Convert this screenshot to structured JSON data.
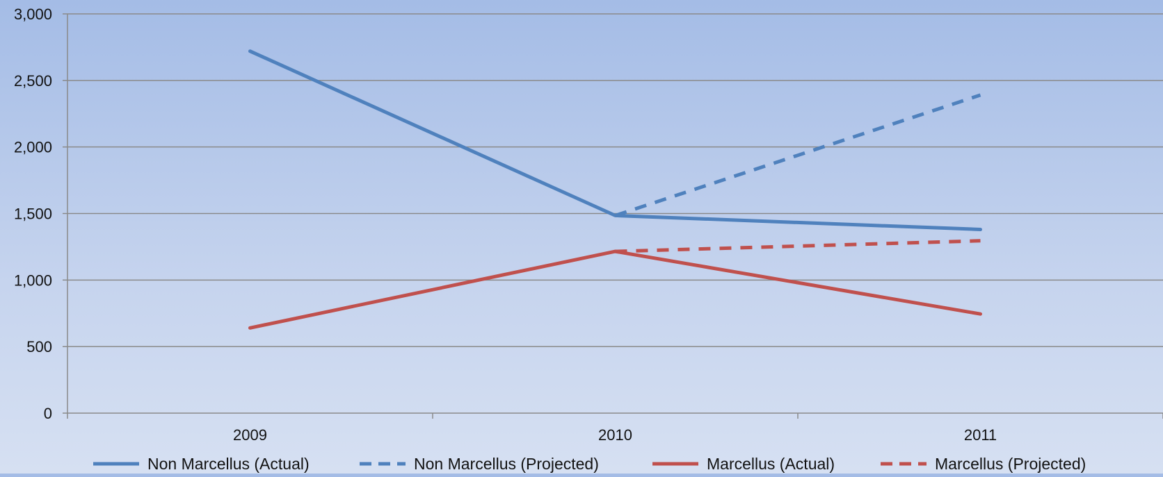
{
  "chart_data": {
    "type": "line",
    "title": "",
    "xlabel": "",
    "ylabel": "",
    "categories": [
      "2009",
      "2010",
      "2011"
    ],
    "ylim": [
      0,
      3000
    ],
    "yticks": [
      0,
      500,
      1000,
      1500,
      2000,
      2500,
      3000
    ],
    "ytick_labels": [
      "0",
      "500",
      "1,000",
      "1,500",
      "2,000",
      "2,500",
      "3,000"
    ],
    "grid": "horizontal",
    "legend_position": "bottom",
    "series": [
      {
        "name": "Non Marcellus (Actual)",
        "values": [
          2720,
          1485,
          1380
        ],
        "color": "#4f81bd",
        "dash": "solid"
      },
      {
        "name": "Non Marcellus (Projected)",
        "values": [
          null,
          1485,
          2390
        ],
        "color": "#4f81bd",
        "dash": "dashed"
      },
      {
        "name": "Marcellus (Actual)",
        "values": [
          640,
          1215,
          745
        ],
        "color": "#c0504d",
        "dash": "solid"
      },
      {
        "name": "Marcellus (Projected)",
        "values": [
          null,
          1215,
          1295
        ],
        "color": "#c0504d",
        "dash": "dashed"
      }
    ]
  }
}
